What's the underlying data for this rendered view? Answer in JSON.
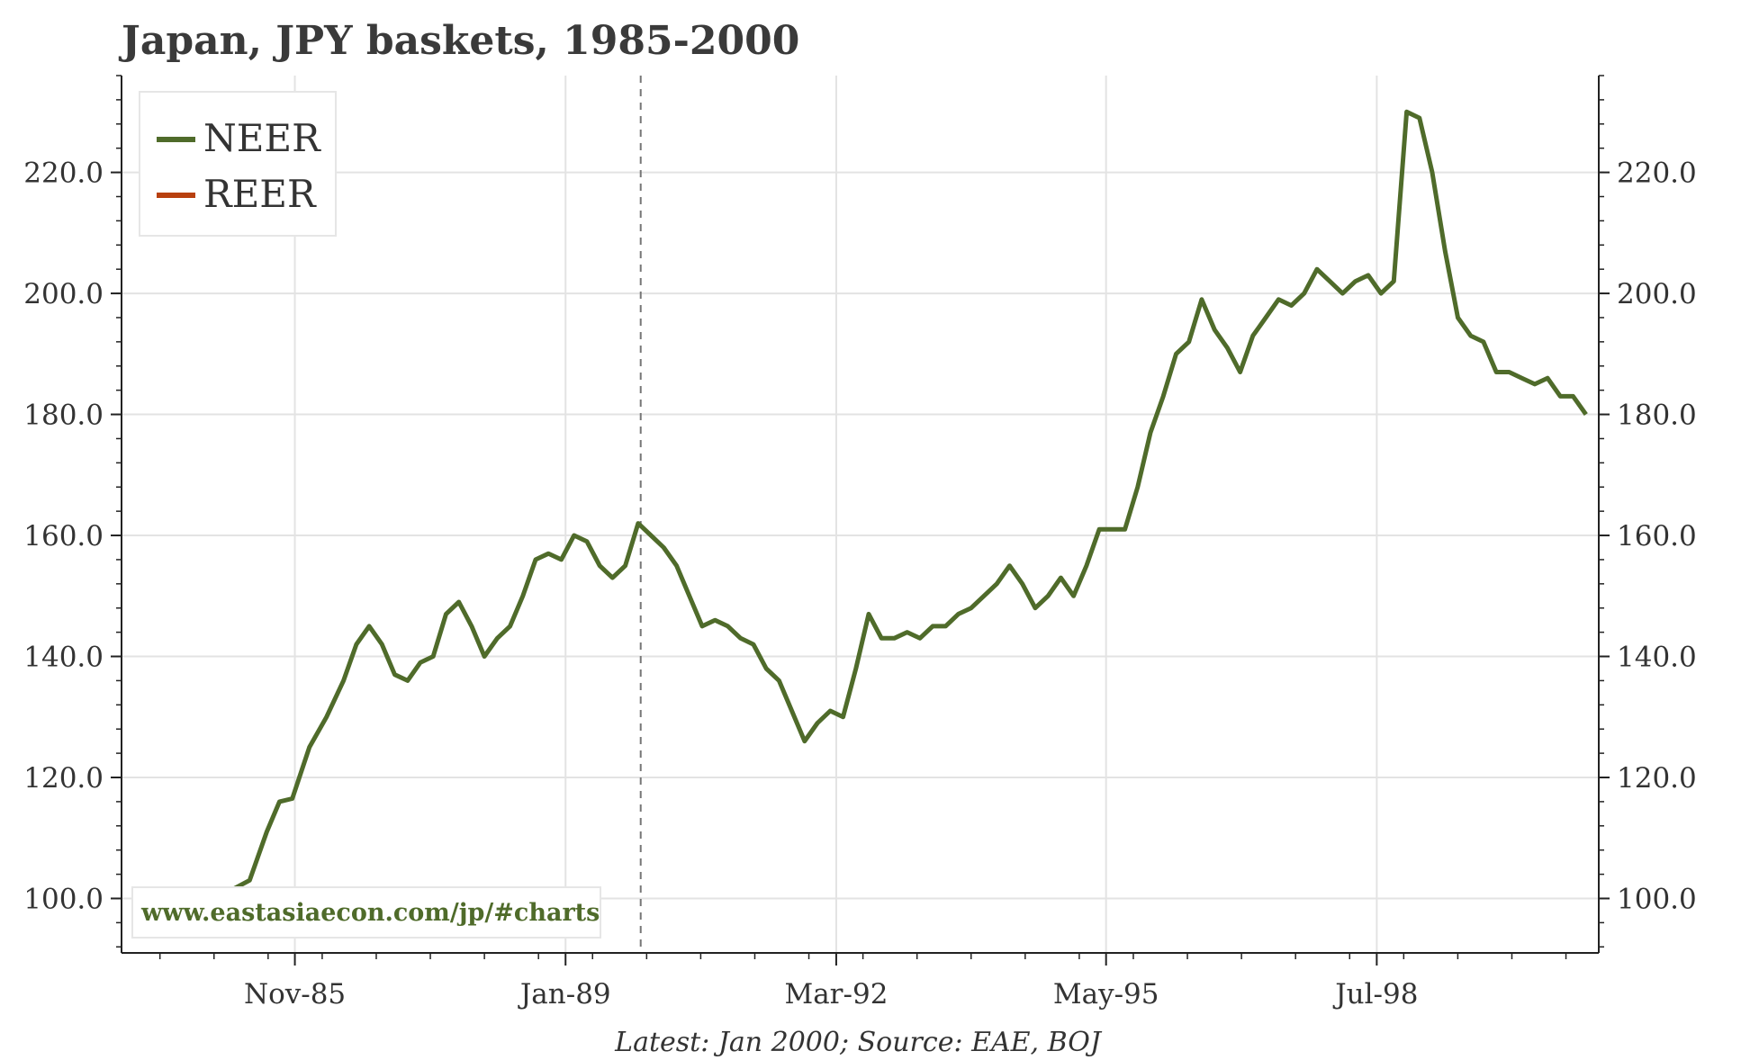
{
  "title": "Japan, JPY baskets, 1985-2000",
  "footer": "Latest: Jan 2000; Source: EAE, BOJ",
  "watermark": "www.eastasiaecon.com/jp/#charts",
  "colors": {
    "neer": "#4f6b2a",
    "reer": "#b8400f",
    "grid": "#e3e3e3",
    "axis": "#222222",
    "watermark": "#4f6b2a"
  },
  "chart_data": {
    "type": "line",
    "title": "Japan, JPY baskets, 1985-2000",
    "xlabel": "",
    "ylabel": "",
    "ylim": [
      91,
      236
    ],
    "xlim": [
      1983.8,
      2001.1
    ],
    "x_ticks": [
      {
        "label": "Nov-85",
        "x": 1985.83
      },
      {
        "label": "Jan-89",
        "x": 1989.0
      },
      {
        "label": "Mar-92",
        "x": 1992.17
      },
      {
        "label": "May-95",
        "x": 1995.33
      },
      {
        "label": "Jul-98",
        "x": 1998.5
      }
    ],
    "y_ticks": [
      {
        "label": "100.0",
        "value": 100
      },
      {
        "label": "120.0",
        "value": 120
      },
      {
        "label": "140.0",
        "value": 140
      },
      {
        "label": "160.0",
        "value": 160
      },
      {
        "label": "180.0",
        "value": 180
      },
      {
        "label": "200.0",
        "value": 200
      },
      {
        "label": "220.0",
        "value": 220
      }
    ],
    "vline_x": 1989.88,
    "grid": true,
    "legend_position": "top-left",
    "series": [
      {
        "name": "NEER",
        "color": "#4f6b2a",
        "points": [
          [
            1984.55,
            98
          ],
          [
            1984.7,
            100
          ],
          [
            1984.9,
            100.5
          ],
          [
            1985.1,
            101.5
          ],
          [
            1985.3,
            103
          ],
          [
            1985.5,
            111
          ],
          [
            1985.65,
            116
          ],
          [
            1985.8,
            116.5
          ],
          [
            1986.0,
            125
          ],
          [
            1986.2,
            130
          ],
          [
            1986.4,
            136
          ],
          [
            1986.55,
            142
          ],
          [
            1986.7,
            145
          ],
          [
            1986.85,
            142
          ],
          [
            1987.0,
            137
          ],
          [
            1987.15,
            136
          ],
          [
            1987.3,
            139
          ],
          [
            1987.45,
            140
          ],
          [
            1987.6,
            147
          ],
          [
            1987.75,
            149
          ],
          [
            1987.9,
            145
          ],
          [
            1988.05,
            140
          ],
          [
            1988.2,
            143
          ],
          [
            1988.35,
            145
          ],
          [
            1988.5,
            150
          ],
          [
            1988.65,
            156
          ],
          [
            1988.8,
            157
          ],
          [
            1988.95,
            156
          ],
          [
            1989.1,
            160
          ],
          [
            1989.25,
            159
          ],
          [
            1989.4,
            155
          ],
          [
            1989.55,
            153
          ],
          [
            1989.7,
            155
          ],
          [
            1989.85,
            162
          ],
          [
            1990.0,
            160
          ],
          [
            1990.15,
            158
          ],
          [
            1990.3,
            155
          ],
          [
            1990.45,
            150
          ],
          [
            1990.6,
            145
          ],
          [
            1990.75,
            146
          ],
          [
            1990.9,
            145
          ],
          [
            1991.05,
            143
          ],
          [
            1991.2,
            142
          ],
          [
            1991.35,
            138
          ],
          [
            1991.5,
            136
          ],
          [
            1991.65,
            131
          ],
          [
            1991.8,
            126
          ],
          [
            1991.95,
            129
          ],
          [
            1992.1,
            131
          ],
          [
            1992.25,
            130
          ],
          [
            1992.4,
            138
          ],
          [
            1992.55,
            147
          ],
          [
            1992.7,
            143
          ],
          [
            1992.85,
            143
          ],
          [
            1993.0,
            144
          ],
          [
            1993.15,
            143
          ],
          [
            1993.3,
            145
          ],
          [
            1993.45,
            145
          ],
          [
            1993.6,
            147
          ],
          [
            1993.75,
            148
          ],
          [
            1993.9,
            150
          ],
          [
            1994.05,
            152
          ],
          [
            1994.2,
            155
          ],
          [
            1994.35,
            152
          ],
          [
            1994.5,
            148
          ],
          [
            1994.65,
            150
          ],
          [
            1994.8,
            153
          ],
          [
            1994.95,
            150
          ],
          [
            1995.1,
            155
          ],
          [
            1995.25,
            161
          ],
          [
            1995.4,
            161
          ],
          [
            1995.55,
            161
          ],
          [
            1995.7,
            168
          ],
          [
            1995.85,
            177
          ],
          [
            1996.0,
            183
          ],
          [
            1996.15,
            190
          ],
          [
            1996.3,
            192
          ],
          [
            1996.45,
            199
          ],
          [
            1996.6,
            194
          ],
          [
            1996.75,
            191
          ],
          [
            1996.9,
            187
          ],
          [
            1997.05,
            193
          ],
          [
            1997.2,
            196
          ],
          [
            1997.35,
            199
          ],
          [
            1997.5,
            198
          ],
          [
            1997.65,
            200
          ],
          [
            1997.8,
            204
          ],
          [
            1997.95,
            202
          ],
          [
            1998.1,
            200
          ],
          [
            1998.25,
            202
          ],
          [
            1998.4,
            203
          ],
          [
            1998.55,
            200
          ],
          [
            1998.7,
            202
          ],
          [
            1998.85,
            230
          ],
          [
            1999.0,
            229
          ],
          [
            1999.15,
            220
          ],
          [
            1999.3,
            207
          ],
          [
            1999.45,
            196
          ],
          [
            1999.6,
            193
          ],
          [
            1999.75,
            192
          ],
          [
            1999.9,
            187
          ],
          [
            2000.05,
            187
          ],
          [
            2000.2,
            186
          ],
          [
            2000.35,
            185
          ],
          [
            2000.5,
            186
          ],
          [
            2000.65,
            183
          ],
          [
            2000.8,
            183
          ],
          [
            2000.95,
            180
          ]
        ],
        "values_note": ""
      }
    ]
  },
  "legend": {
    "neer": "NEER",
    "reer": "REER"
  }
}
